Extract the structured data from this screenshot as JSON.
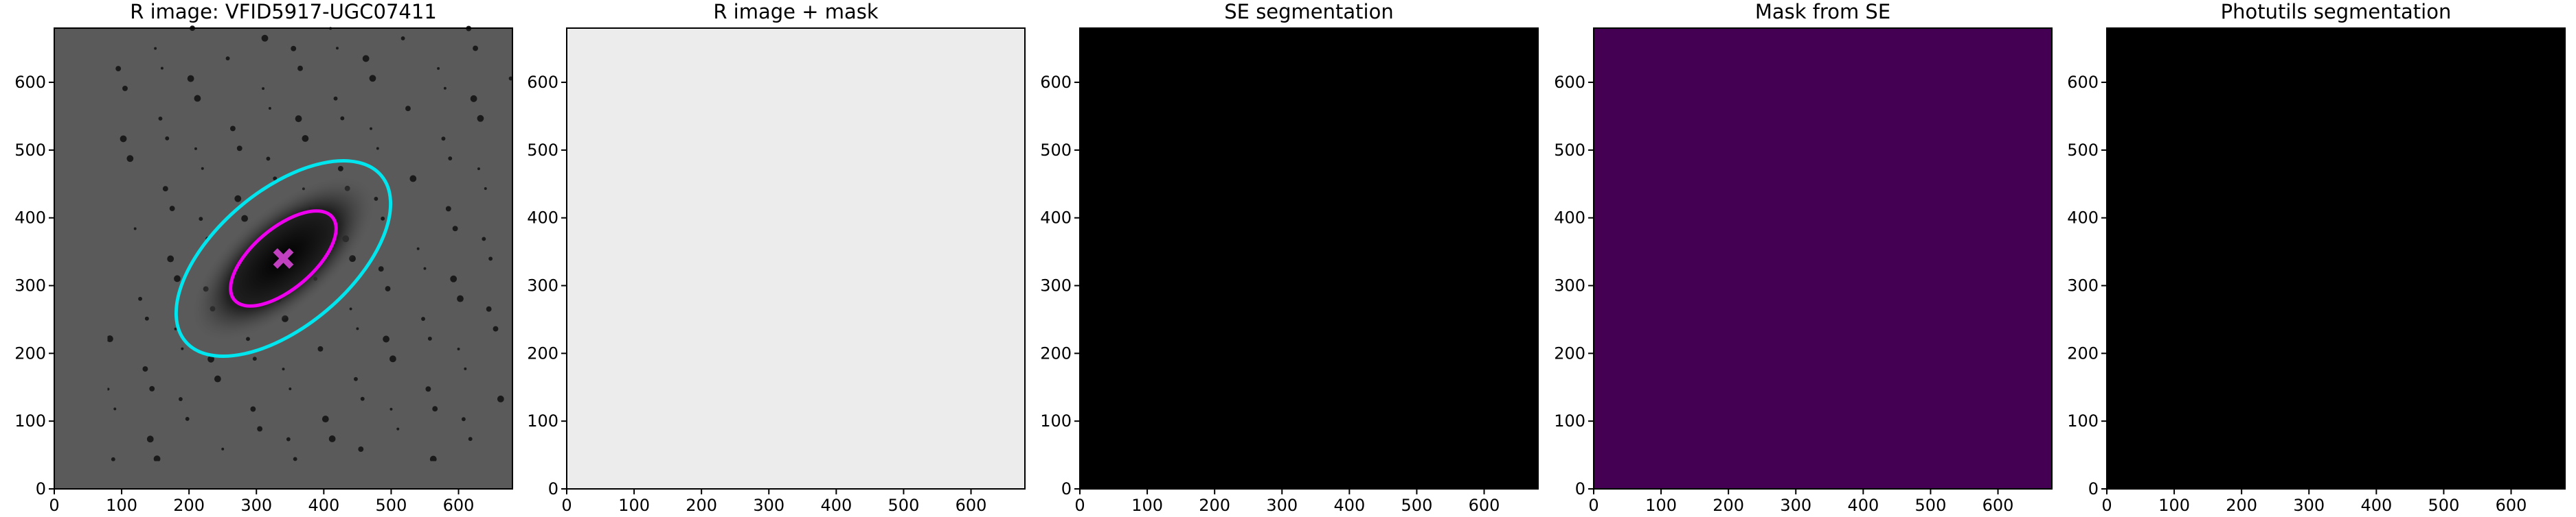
{
  "chart_data": [
    {
      "type": "image",
      "title": "R image: VFID5917-UGC07411",
      "xlim": [
        0,
        680
      ],
      "ylim": [
        0,
        680
      ],
      "xticks": [
        0,
        100,
        200,
        300,
        400,
        500,
        600
      ],
      "yticks": [
        0,
        100,
        200,
        300,
        400,
        500,
        600
      ]
    },
    {
      "type": "image",
      "title": "R image + mask",
      "xlim": [
        0,
        680
      ],
      "ylim": [
        0,
        680
      ],
      "xticks": [
        0,
        100,
        200,
        300,
        400,
        500,
        600
      ],
      "yticks": [
        0,
        100,
        200,
        300,
        400,
        500,
        600
      ]
    },
    {
      "type": "image",
      "title": "SE segmentation",
      "xlim": [
        0,
        680
      ],
      "ylim": [
        0,
        680
      ],
      "xticks": [
        0,
        100,
        200,
        300,
        400,
        500,
        600
      ],
      "yticks": [
        0,
        100,
        200,
        300,
        400,
        500,
        600
      ]
    },
    {
      "type": "image",
      "title": "Mask from SE",
      "xlim": [
        0,
        680
      ],
      "ylim": [
        0,
        680
      ],
      "xticks": [
        0,
        100,
        200,
        300,
        400,
        500,
        600
      ],
      "yticks": [
        0,
        100,
        200,
        300,
        400,
        500,
        600
      ]
    },
    {
      "type": "image",
      "title": "Photutils segmentation",
      "xlim": [
        0,
        680
      ],
      "ylim": [
        0,
        680
      ],
      "xticks": [
        0,
        100,
        200,
        300,
        400,
        500,
        600
      ],
      "yticks": [
        0,
        100,
        200,
        300,
        400,
        500,
        600
      ]
    }
  ]
}
